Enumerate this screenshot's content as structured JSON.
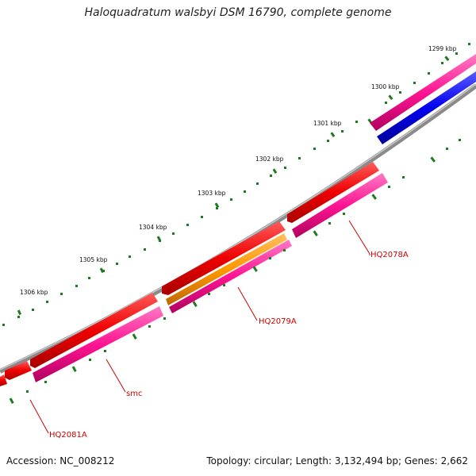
{
  "title": "Haloquadratum walsbyi DSM 16790, complete genome",
  "footer": {
    "accession": "Accession: NC_008212",
    "summary": "Topology: circular; Length: 3,132,494 bp; Genes: 2,662"
  },
  "scale_labels": [
    "1299 kbp",
    "1300 kbp",
    "1301 kbp",
    "1302 kbp",
    "1303 kbp",
    "1304 kbp",
    "1305 kbp",
    "1306 kbp"
  ],
  "gene_labels": [
    "HQ2078A",
    "HQ2079A",
    "smc",
    "HQ2081A"
  ],
  "colors": {
    "backbone": "#8a8a8a",
    "feature_red": "#ee0000",
    "feature_pink": "#ff1493",
    "feature_magenta": "#c71585",
    "feature_orange": "#ff9900",
    "feature_blue": "#0000ee",
    "tick_green": "#1f7a1f",
    "label_red": "#cc0000"
  }
}
